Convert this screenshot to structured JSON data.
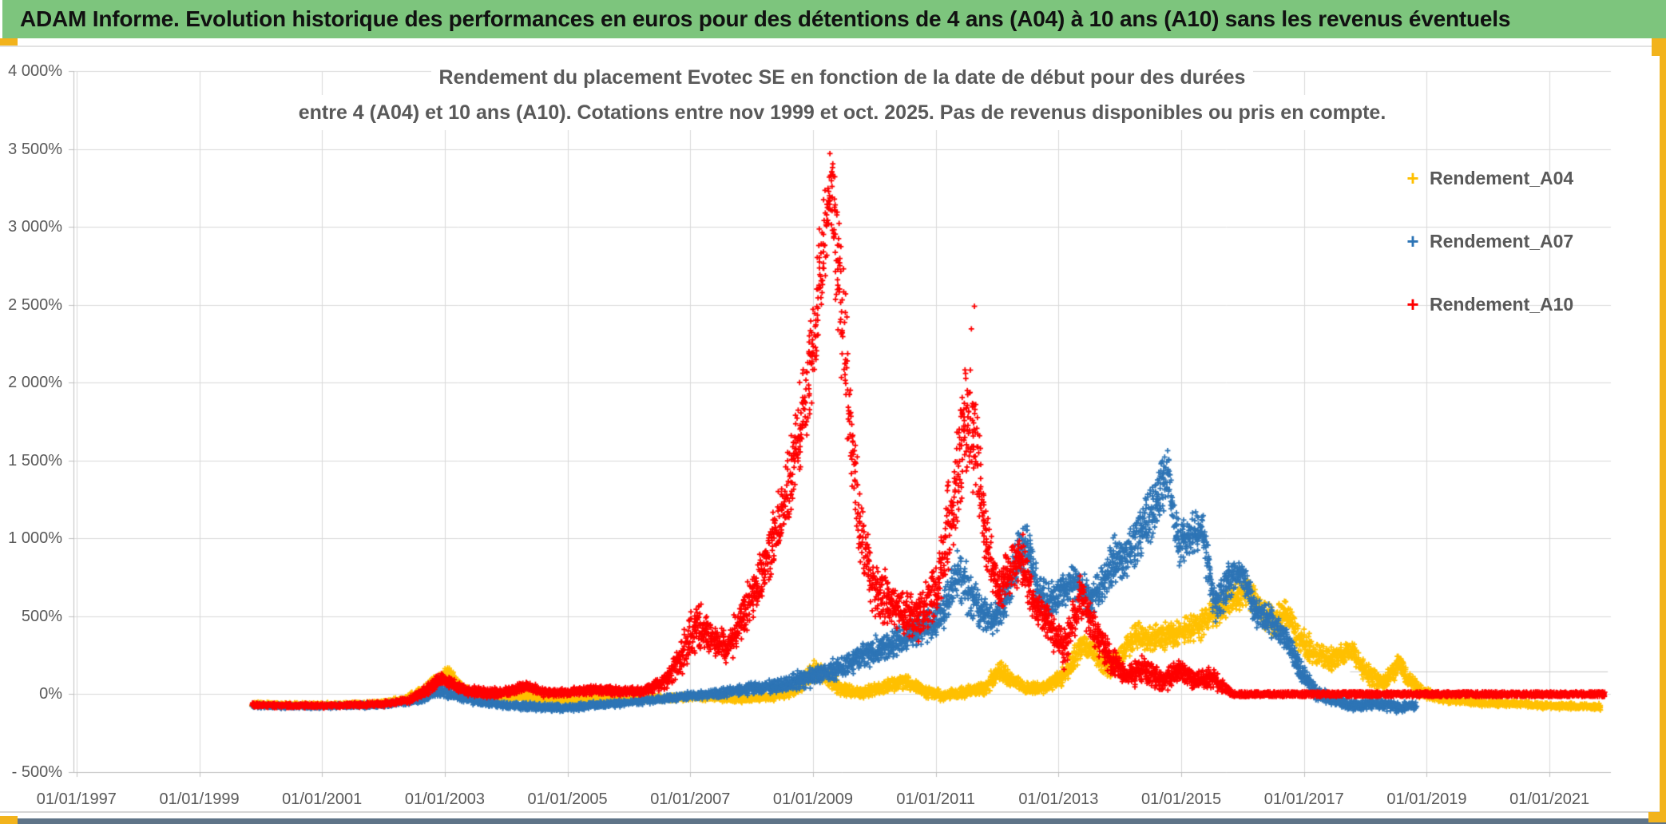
{
  "page": {
    "header": {
      "title": "ADAM Informe. Evolution historique des performances en euros pour des détentions de 4 ans (A04) à 10 ans (A10) sans les revenus éventuels",
      "bg_color": "#7dc57d",
      "text_color": "#111111"
    },
    "accent_orange": "#f2b31c",
    "bottom_bar_color": "#5f7488"
  },
  "chart_data": {
    "type": "scatter",
    "marker": "plus",
    "grid": true,
    "legend_position": "inside-top-right",
    "title_line1": "Rendement du placement Evotec SE en fonction de la date de début pour des durées",
    "title_line2": "entre 4 (A04) et 10 ans (A10). Cotations entre nov 1999 et oct. 2025. Pas de revenus disponibles ou pris en compte.",
    "x_axis": {
      "labels": [
        "01/01/1997",
        "01/01/1999",
        "01/01/2001",
        "01/01/2003",
        "01/01/2005",
        "01/01/2007",
        "01/01/2009",
        "01/01/2011",
        "01/01/2013",
        "01/01/2015",
        "01/01/2017",
        "01/01/2019",
        "01/01/2021"
      ],
      "years": [
        1997,
        1999,
        2001,
        2003,
        2005,
        2007,
        2009,
        2011,
        2013,
        2015,
        2017,
        2019,
        2021
      ],
      "domain": [
        1996.95,
        2022.0
      ]
    },
    "y_axis": {
      "labels": [
        "4 000%",
        "3 500%",
        "3 000%",
        "2 500%",
        "2 000%",
        "1 500%",
        "1 000%",
        "500%",
        "0%",
        "- 500%"
      ],
      "values": [
        4000,
        3500,
        3000,
        2500,
        2000,
        1500,
        1000,
        500,
        0,
        -500
      ],
      "ylim": [
        -500,
        4000
      ],
      "step": 500,
      "format": "percent"
    },
    "legend": [
      {
        "label": "Rendement_A04",
        "color": "#ffc000"
      },
      {
        "label": "Rendement_A07",
        "color": "#2e75b6"
      },
      {
        "label": "Rendement_A10",
        "color": "#ff0000"
      }
    ],
    "gridline_color": "#d9d9d9",
    "axis_color": "#bfbfbf",
    "axis_artifact_line": {
      "value_pct": 145,
      "from_year": 2017.75,
      "to_year": 2021.95
    },
    "series": [
      {
        "name": "Rendement_A04",
        "color": "#ffc000",
        "start": 1999.87,
        "end": 2021.83,
        "band": [
          [
            1999.87,
            -80,
            -50
          ],
          [
            2001,
            -85,
            -55
          ],
          [
            2001.9,
            -75,
            -45
          ],
          [
            2002.3,
            -55,
            -15
          ],
          [
            2002.65,
            -30,
            60
          ],
          [
            2002.85,
            30,
            130
          ],
          [
            2003.05,
            90,
            195
          ],
          [
            2003.25,
            0,
            90
          ],
          [
            2003.5,
            -40,
            30
          ],
          [
            2003.9,
            -55,
            5
          ],
          [
            2004.3,
            -45,
            20
          ],
          [
            2004.7,
            -60,
            -5
          ],
          [
            2005.1,
            -65,
            -15
          ],
          [
            2005.5,
            -55,
            -5
          ],
          [
            2005.9,
            -60,
            -15
          ],
          [
            2006.3,
            -55,
            -10
          ],
          [
            2006.7,
            -45,
            0
          ],
          [
            2007.1,
            -40,
            10
          ],
          [
            2007.5,
            -50,
            -5
          ],
          [
            2007.9,
            -55,
            -10
          ],
          [
            2008.3,
            -45,
            5
          ],
          [
            2008.7,
            -20,
            60
          ],
          [
            2009,
            80,
            230
          ],
          [
            2009.2,
            60,
            180
          ],
          [
            2009.45,
            -10,
            80
          ],
          [
            2009.8,
            -35,
            40
          ],
          [
            2010.2,
            0,
            110
          ],
          [
            2010.5,
            30,
            140
          ],
          [
            2010.8,
            -25,
            60
          ],
          [
            2011.1,
            -45,
            30
          ],
          [
            2011.45,
            -30,
            50
          ],
          [
            2011.8,
            -10,
            80
          ],
          [
            2012.05,
            80,
            230
          ],
          [
            2012.25,
            30,
            140
          ],
          [
            2012.5,
            -10,
            80
          ],
          [
            2012.8,
            0,
            90
          ],
          [
            2013.1,
            60,
            180
          ],
          [
            2013.4,
            240,
            430
          ],
          [
            2013.6,
            180,
            330
          ],
          [
            2013.8,
            90,
            250
          ],
          [
            2014,
            150,
            300
          ],
          [
            2014.25,
            280,
            490
          ],
          [
            2014.5,
            260,
            450
          ],
          [
            2014.75,
            280,
            470
          ],
          [
            2015,
            300,
            490
          ],
          [
            2015.3,
            340,
            560
          ],
          [
            2015.6,
            420,
            650
          ],
          [
            2015.85,
            520,
            720
          ],
          [
            2016.1,
            560,
            770
          ],
          [
            2016.3,
            430,
            640
          ],
          [
            2016.5,
            360,
            560
          ],
          [
            2016.7,
            430,
            630
          ],
          [
            2016.9,
            280,
            480
          ],
          [
            2017.15,
            170,
            350
          ],
          [
            2017.45,
            140,
            310
          ],
          [
            2017.75,
            200,
            370
          ],
          [
            2018,
            60,
            220
          ],
          [
            2018.3,
            10,
            130
          ],
          [
            2018.55,
            120,
            280
          ],
          [
            2018.65,
            60,
            180
          ],
          [
            2018.9,
            -30,
            60
          ],
          [
            2019.2,
            -60,
            10
          ],
          [
            2019.6,
            -70,
            -20
          ],
          [
            2020,
            -80,
            -35
          ],
          [
            2020.5,
            -85,
            -40
          ],
          [
            2021,
            -95,
            -50
          ],
          [
            2021.5,
            -100,
            -55
          ],
          [
            2021.83,
            -105,
            -60
          ]
        ]
      },
      {
        "name": "Rendement_A07",
        "color": "#2e75b6",
        "start": 1999.87,
        "end": 2018.83,
        "band": [
          [
            1999.87,
            -90,
            -60
          ],
          [
            2001,
            -92,
            -65
          ],
          [
            2002,
            -85,
            -55
          ],
          [
            2002.6,
            -60,
            -15
          ],
          [
            2002.95,
            -20,
            80
          ],
          [
            2003.2,
            -45,
            20
          ],
          [
            2003.6,
            -80,
            -30
          ],
          [
            2004,
            -95,
            -45
          ],
          [
            2004.5,
            -110,
            -55
          ],
          [
            2005,
            -115,
            -60
          ],
          [
            2005.5,
            -95,
            -45
          ],
          [
            2006,
            -75,
            -30
          ],
          [
            2006.5,
            -55,
            -10
          ],
          [
            2007,
            -40,
            20
          ],
          [
            2007.5,
            -30,
            40
          ],
          [
            2008,
            -10,
            80
          ],
          [
            2008.5,
            10,
            120
          ],
          [
            2008.9,
            30,
            170
          ],
          [
            2009.2,
            60,
            210
          ],
          [
            2009.5,
            100,
            260
          ],
          [
            2009.8,
            150,
            330
          ],
          [
            2010.1,
            200,
            400
          ],
          [
            2010.5,
            260,
            470
          ],
          [
            2010.8,
            310,
            560
          ],
          [
            2011.1,
            380,
            650
          ],
          [
            2011.38,
            600,
            1000
          ],
          [
            2011.55,
            480,
            800
          ],
          [
            2011.75,
            400,
            650
          ],
          [
            2011.95,
            360,
            600
          ],
          [
            2012.15,
            450,
            750
          ],
          [
            2012.35,
            700,
            1100
          ],
          [
            2012.5,
            820,
            1120
          ],
          [
            2012.65,
            560,
            820
          ],
          [
            2012.85,
            470,
            720
          ],
          [
            2013.05,
            520,
            800
          ],
          [
            2013.3,
            580,
            880
          ],
          [
            2013.5,
            470,
            730
          ],
          [
            2013.7,
            560,
            860
          ],
          [
            2013.9,
            680,
            1020
          ],
          [
            2014.1,
            700,
            1050
          ],
          [
            2014.35,
            850,
            1250
          ],
          [
            2014.55,
            950,
            1400
          ],
          [
            2014.78,
            1250,
            1630
          ],
          [
            2014.95,
            800,
            1100
          ],
          [
            2015.1,
            880,
            1190
          ],
          [
            2015.35,
            900,
            1190
          ],
          [
            2015.55,
            420,
            700
          ],
          [
            2015.8,
            600,
            880
          ],
          [
            2016,
            680,
            880
          ],
          [
            2016.2,
            420,
            640
          ],
          [
            2016.45,
            370,
            590
          ],
          [
            2016.7,
            250,
            450
          ],
          [
            2016.95,
            60,
            220
          ],
          [
            2017.2,
            -40,
            60
          ],
          [
            2017.5,
            -80,
            0
          ],
          [
            2017.8,
            -110,
            -40
          ],
          [
            2018.2,
            -95,
            -25
          ],
          [
            2018.5,
            -120,
            -50
          ],
          [
            2018.83,
            -105,
            -45
          ]
        ]
      },
      {
        "name": "Rendement_A10",
        "color": "#ff0000",
        "start": 1999.87,
        "end": 2015.83,
        "band": [
          [
            1999.87,
            -85,
            -55
          ],
          [
            2001,
            -88,
            -60
          ],
          [
            2002,
            -80,
            -45
          ],
          [
            2002.45,
            -60,
            -10
          ],
          [
            2002.75,
            -10,
            90
          ],
          [
            2002.95,
            60,
            145
          ],
          [
            2003.1,
            20,
            110
          ],
          [
            2003.35,
            -15,
            60
          ],
          [
            2003.7,
            -25,
            45
          ],
          [
            2004.05,
            -20,
            50
          ],
          [
            2004.35,
            20,
            90
          ],
          [
            2004.6,
            -15,
            45
          ],
          [
            2005,
            -20,
            40
          ],
          [
            2005.45,
            0,
            65
          ],
          [
            2005.8,
            -15,
            50
          ],
          [
            2006.2,
            -15,
            45
          ],
          [
            2006.55,
            20,
            120
          ],
          [
            2006.9,
            120,
            400
          ],
          [
            2007.1,
            280,
            650
          ],
          [
            2007.35,
            220,
            500
          ],
          [
            2007.6,
            180,
            420
          ],
          [
            2007.9,
            350,
            700
          ],
          [
            2008.2,
            600,
            1000
          ],
          [
            2008.5,
            900,
            1400
          ],
          [
            2008.75,
            1300,
            1900
          ],
          [
            2008.95,
            1700,
            2400
          ],
          [
            2009.1,
            2200,
            3000
          ],
          [
            2009.28,
            2900,
            3630
          ],
          [
            2009.45,
            2100,
            3100
          ],
          [
            2009.6,
            1400,
            2100
          ],
          [
            2009.75,
            850,
            1400
          ],
          [
            2009.95,
            500,
            900
          ],
          [
            2010.3,
            380,
            750
          ],
          [
            2010.7,
            320,
            650
          ],
          [
            2011,
            450,
            850
          ],
          [
            2011.25,
            800,
            1500
          ],
          [
            2011.5,
            1400,
            2200
          ],
          [
            2011.65,
            1250,
            1950
          ],
          [
            2011.8,
            800,
            1300
          ],
          [
            2012,
            520,
            820
          ],
          [
            2012.2,
            600,
            950
          ],
          [
            2012.4,
            700,
            1080
          ],
          [
            2012.6,
            450,
            720
          ],
          [
            2012.85,
            300,
            560
          ],
          [
            2013.1,
            150,
            420
          ],
          [
            2013.35,
            480,
            780
          ],
          [
            2013.6,
            280,
            520
          ],
          [
            2013.85,
            120,
            330
          ],
          [
            2014.1,
            30,
            200
          ],
          [
            2014.4,
            60,
            260
          ],
          [
            2014.7,
            0,
            140
          ],
          [
            2014.95,
            80,
            250
          ],
          [
            2015.2,
            20,
            160
          ],
          [
            2015.5,
            30,
            180
          ],
          [
            2015.83,
            -15,
            25
          ]
        ],
        "outliers": [
          [
            2011.58,
            2345
          ],
          [
            2011.63,
            2490
          ]
        ],
        "flat_zero_from": 2015.83,
        "flat_zero_to": 2021.9
      }
    ]
  }
}
